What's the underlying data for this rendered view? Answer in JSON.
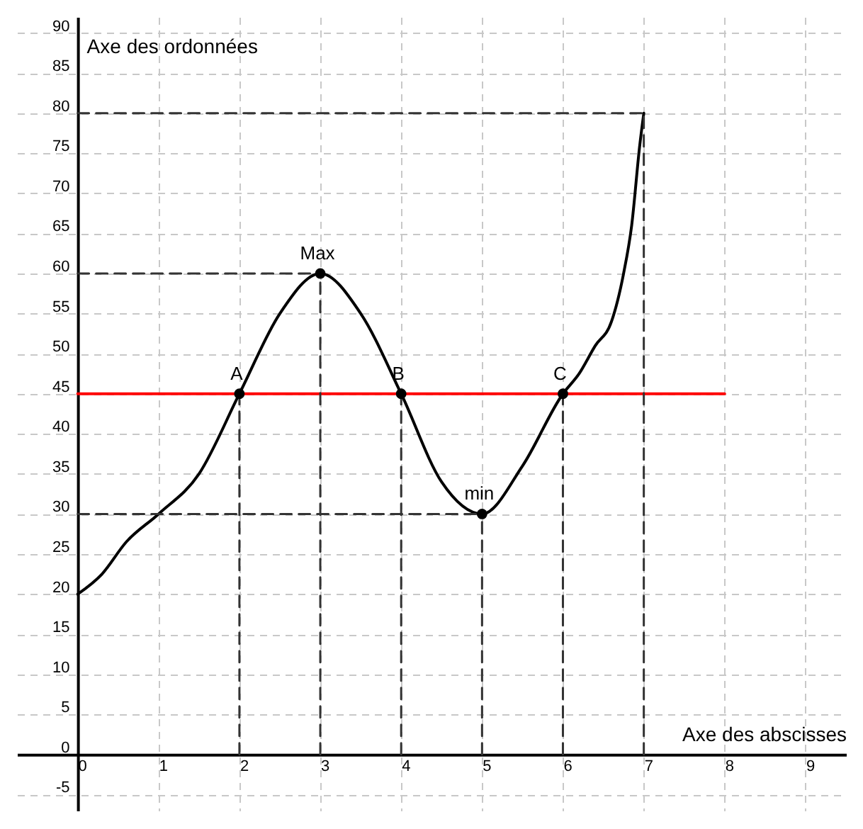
{
  "chart_data": {
    "type": "line",
    "xlabel": "Axe des abscisses",
    "ylabel": "Axe des ordonnées",
    "xlim": [
      -0.75,
      9.5
    ],
    "ylim": [
      -7,
      92
    ],
    "xticks": [
      0,
      1,
      2,
      3,
      4,
      5,
      6,
      7,
      8,
      9
    ],
    "yticks": [
      -5,
      0,
      5,
      10,
      15,
      20,
      25,
      30,
      35,
      40,
      45,
      50,
      55,
      60,
      65,
      70,
      75,
      80,
      85,
      90
    ],
    "grid": true,
    "series": [
      {
        "type": "line",
        "color": "#000000",
        "line_style": "solid",
        "x": [
          0,
          0.3,
          0.6,
          1,
          1.5,
          2,
          2.5,
          3,
          3.5,
          4,
          4.5,
          5,
          5.5,
          6,
          6.2,
          6.4,
          6.6,
          6.75,
          6.85,
          6.95,
          7
        ],
        "values": [
          20,
          22.5,
          26.5,
          30,
          35,
          45,
          55,
          60,
          55,
          45,
          34,
          30,
          36,
          45,
          47.5,
          51,
          54,
          60,
          66,
          76,
          80
        ]
      },
      {
        "type": "line",
        "color": "#ff0000",
        "line_style": "solid",
        "x": [
          0,
          8
        ],
        "values": [
          45,
          45
        ]
      },
      {
        "type": "line",
        "color": "#333333",
        "line_style": "dashed",
        "x": [
          0,
          7
        ],
        "values": [
          80,
          80
        ]
      },
      {
        "type": "line",
        "color": "#333333",
        "line_style": "dashed",
        "x": [
          0,
          3
        ],
        "values": [
          60,
          60
        ]
      },
      {
        "type": "line",
        "color": "#333333",
        "line_style": "dashed",
        "x": [
          0,
          5
        ],
        "values": [
          30,
          30
        ]
      },
      {
        "type": "line",
        "color": "#333333",
        "line_style": "dashed",
        "x": [
          2,
          2
        ],
        "values": [
          0,
          45
        ]
      },
      {
        "type": "line",
        "color": "#333333",
        "line_style": "dashed",
        "x": [
          3,
          3
        ],
        "values": [
          0,
          60
        ]
      },
      {
        "type": "line",
        "color": "#333333",
        "line_style": "dashed",
        "x": [
          4,
          4
        ],
        "values": [
          0,
          45
        ]
      },
      {
        "type": "line",
        "color": "#333333",
        "line_style": "dashed",
        "x": [
          5,
          5
        ],
        "values": [
          0,
          30
        ]
      },
      {
        "type": "line",
        "color": "#333333",
        "line_style": "dashed",
        "x": [
          6,
          6
        ],
        "values": [
          0,
          45
        ]
      },
      {
        "type": "line",
        "color": "#333333",
        "line_style": "dashed",
        "x": [
          7,
          7
        ],
        "values": [
          0,
          80
        ]
      },
      {
        "type": "scatter",
        "color": "#000000",
        "marker": "circle",
        "x": [
          2,
          3,
          4,
          5,
          6
        ],
        "values": [
          45,
          60,
          45,
          30,
          45
        ]
      }
    ],
    "annotations": [
      {
        "text": "A",
        "x": 2,
        "y": 45
      },
      {
        "text": "Max",
        "x": 3,
        "y": 60
      },
      {
        "text": "B",
        "x": 4,
        "y": 45
      },
      {
        "text": "min",
        "x": 5,
        "y": 30
      },
      {
        "text": "C",
        "x": 6,
        "y": 45
      }
    ]
  }
}
